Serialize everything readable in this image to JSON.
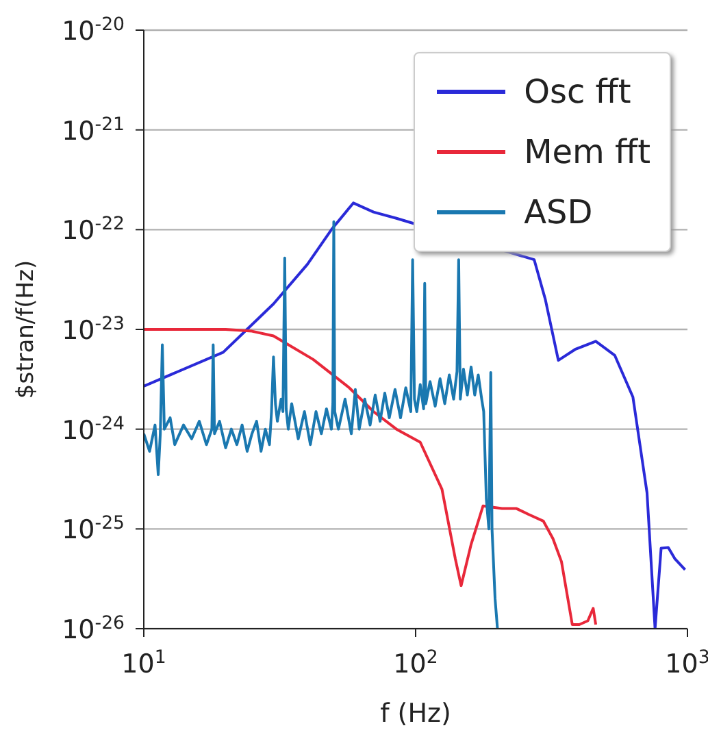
{
  "chart_data": {
    "type": "line",
    "xlabel": "f (Hz)",
    "ylabel": "$stran/f(Hz)",
    "log": "xy",
    "grid": "y",
    "legend": "top right",
    "marker": "none",
    "line_style": "solid",
    "xlim": [
      10,
      1000
    ],
    "xticks": [
      {
        "value": 10,
        "label": "10$^{1}$"
      },
      {
        "value": 100,
        "label": "10$^{2}$"
      },
      {
        "value": 1000,
        "label": "10$^{3}$"
      }
    ],
    "ylim": [
      1e-26,
      1e-20
    ],
    "yticks": [
      {
        "value": 1e-26,
        "label": "10$^{-26}$"
      },
      {
        "value": 1e-25,
        "label": "10$^{-25}$"
      },
      {
        "value": 1e-24,
        "label": "10$^{-24}$"
      },
      {
        "value": 1e-23,
        "label": "10$^{-23}$"
      },
      {
        "value": 1e-22,
        "label": "10$^{-22}$"
      },
      {
        "value": 1e-21,
        "label": "10$^{-21}$"
      },
      {
        "value": 1e-20,
        "label": "10$^{-20}$"
      }
    ],
    "series": [
      {
        "name": "Osc fft",
        "color": "#2a2ad8",
        "x": [
          10,
          19.6,
          30,
          40,
          49,
          59,
          70,
          85,
          273,
          300,
          335,
          386,
          460,
          540,
          630,
          710,
          760,
          800,
          850,
          900,
          980
        ],
        "values": [
          2.7e-24,
          5.9e-24,
          1.8e-23,
          4.5e-23,
          1e-22,
          1.85e-22,
          1.5e-22,
          1.3e-22,
          5e-23,
          2e-23,
          4.9e-24,
          6.3e-24,
          7.6e-24,
          5.5e-24,
          2.1e-24,
          2.3e-25,
          1e-26,
          6.4e-26,
          6.5e-26,
          5e-26,
          3.9e-26
        ]
      },
      {
        "name": "Mem fft",
        "color": "#e8283a",
        "x": [
          10,
          15,
          20,
          25,
          30,
          42,
          57,
          70,
          85,
          104,
          125,
          140,
          147,
          160,
          177,
          208,
          235,
          260,
          295,
          320,
          344,
          377,
          400,
          430,
          450,
          460
        ],
        "values": [
          1e-23,
          1e-23,
          1e-23,
          9.6e-24,
          8.6e-24,
          5e-24,
          2.6e-24,
          1.5e-24,
          1e-24,
          7.4e-25,
          2.5e-25,
          5e-26,
          2.7e-26,
          7e-26,
          1.7e-25,
          1.6e-25,
          1.6e-25,
          1.4e-25,
          1.2e-25,
          8e-26,
          4.7e-26,
          1.1e-26,
          1.1e-26,
          1.2e-26,
          1.6e-26,
          1.1e-26
        ]
      },
      {
        "name": "ASD",
        "color": "#1a78b0",
        "x": [
          10,
          10.5,
          11,
          11.3,
          11.5,
          11.7,
          11.9,
          12.5,
          13,
          14,
          15,
          16,
          17,
          17.8,
          18,
          18.2,
          19,
          20,
          21,
          22,
          23,
          24,
          25,
          26,
          27,
          28,
          29,
          29.5,
          30,
          30.5,
          31,
          32,
          32.5,
          33,
          33.4,
          34,
          35,
          37,
          39,
          41,
          43,
          45,
          47,
          49,
          49.6,
          50,
          50.4,
          52,
          55,
          58,
          60,
          62,
          65,
          68,
          71,
          74,
          77,
          80,
          84,
          88,
          92,
          96,
          97.5,
          99,
          101,
          104,
          107,
          108,
          109,
          113,
          118,
          123,
          128,
          133,
          138,
          142,
          144,
          146,
          150,
          155,
          160,
          165,
          170,
          175,
          178,
          182,
          186,
          189,
          191,
          196,
          200
        ],
        "values": [
          9e-25,
          6e-25,
          1.1e-24,
          3.5e-25,
          9e-25,
          7e-24,
          1e-24,
          1.3e-24,
          7e-25,
          1.1e-24,
          8e-25,
          1.2e-24,
          7e-25,
          1e-24,
          7e-24,
          9e-25,
          1.2e-24,
          6.5e-25,
          1e-24,
          7e-25,
          1.1e-24,
          6e-25,
          9e-25,
          1.2e-24,
          6e-25,
          1e-24,
          7e-25,
          1.5e-24,
          5.3e-24,
          1.8e-24,
          1.2e-24,
          2e-24,
          1.5e-24,
          5.2e-23,
          1.6e-24,
          1e-24,
          1.8e-24,
          8e-25,
          1.5e-24,
          7e-25,
          1.5e-24,
          9e-25,
          1.6e-24,
          1e-24,
          1.8e-24,
          1.2e-22,
          1.5e-24,
          1e-24,
          2e-24,
          9e-25,
          2.5e-24,
          1e-24,
          2e-24,
          1.1e-24,
          2.2e-24,
          1.2e-24,
          2.3e-24,
          1.3e-24,
          2.5e-24,
          1.3e-24,
          2.6e-24,
          1.5e-24,
          5e-23,
          2e-24,
          1.5e-24,
          2.8e-24,
          1.6e-24,
          2.9e-23,
          1.8e-24,
          3e-24,
          1.7e-24,
          3.2e-24,
          1.8e-24,
          3.5e-24,
          2e-24,
          3.8e-24,
          5e-23,
          2e-24,
          4e-24,
          2.2e-24,
          4.2e-24,
          2.2e-24,
          3.5e-24,
          2e-24,
          1.5e-24,
          2e-25,
          1e-25,
          3.7e-24,
          1e-25,
          2e-26,
          1e-26
        ]
      }
    ]
  }
}
